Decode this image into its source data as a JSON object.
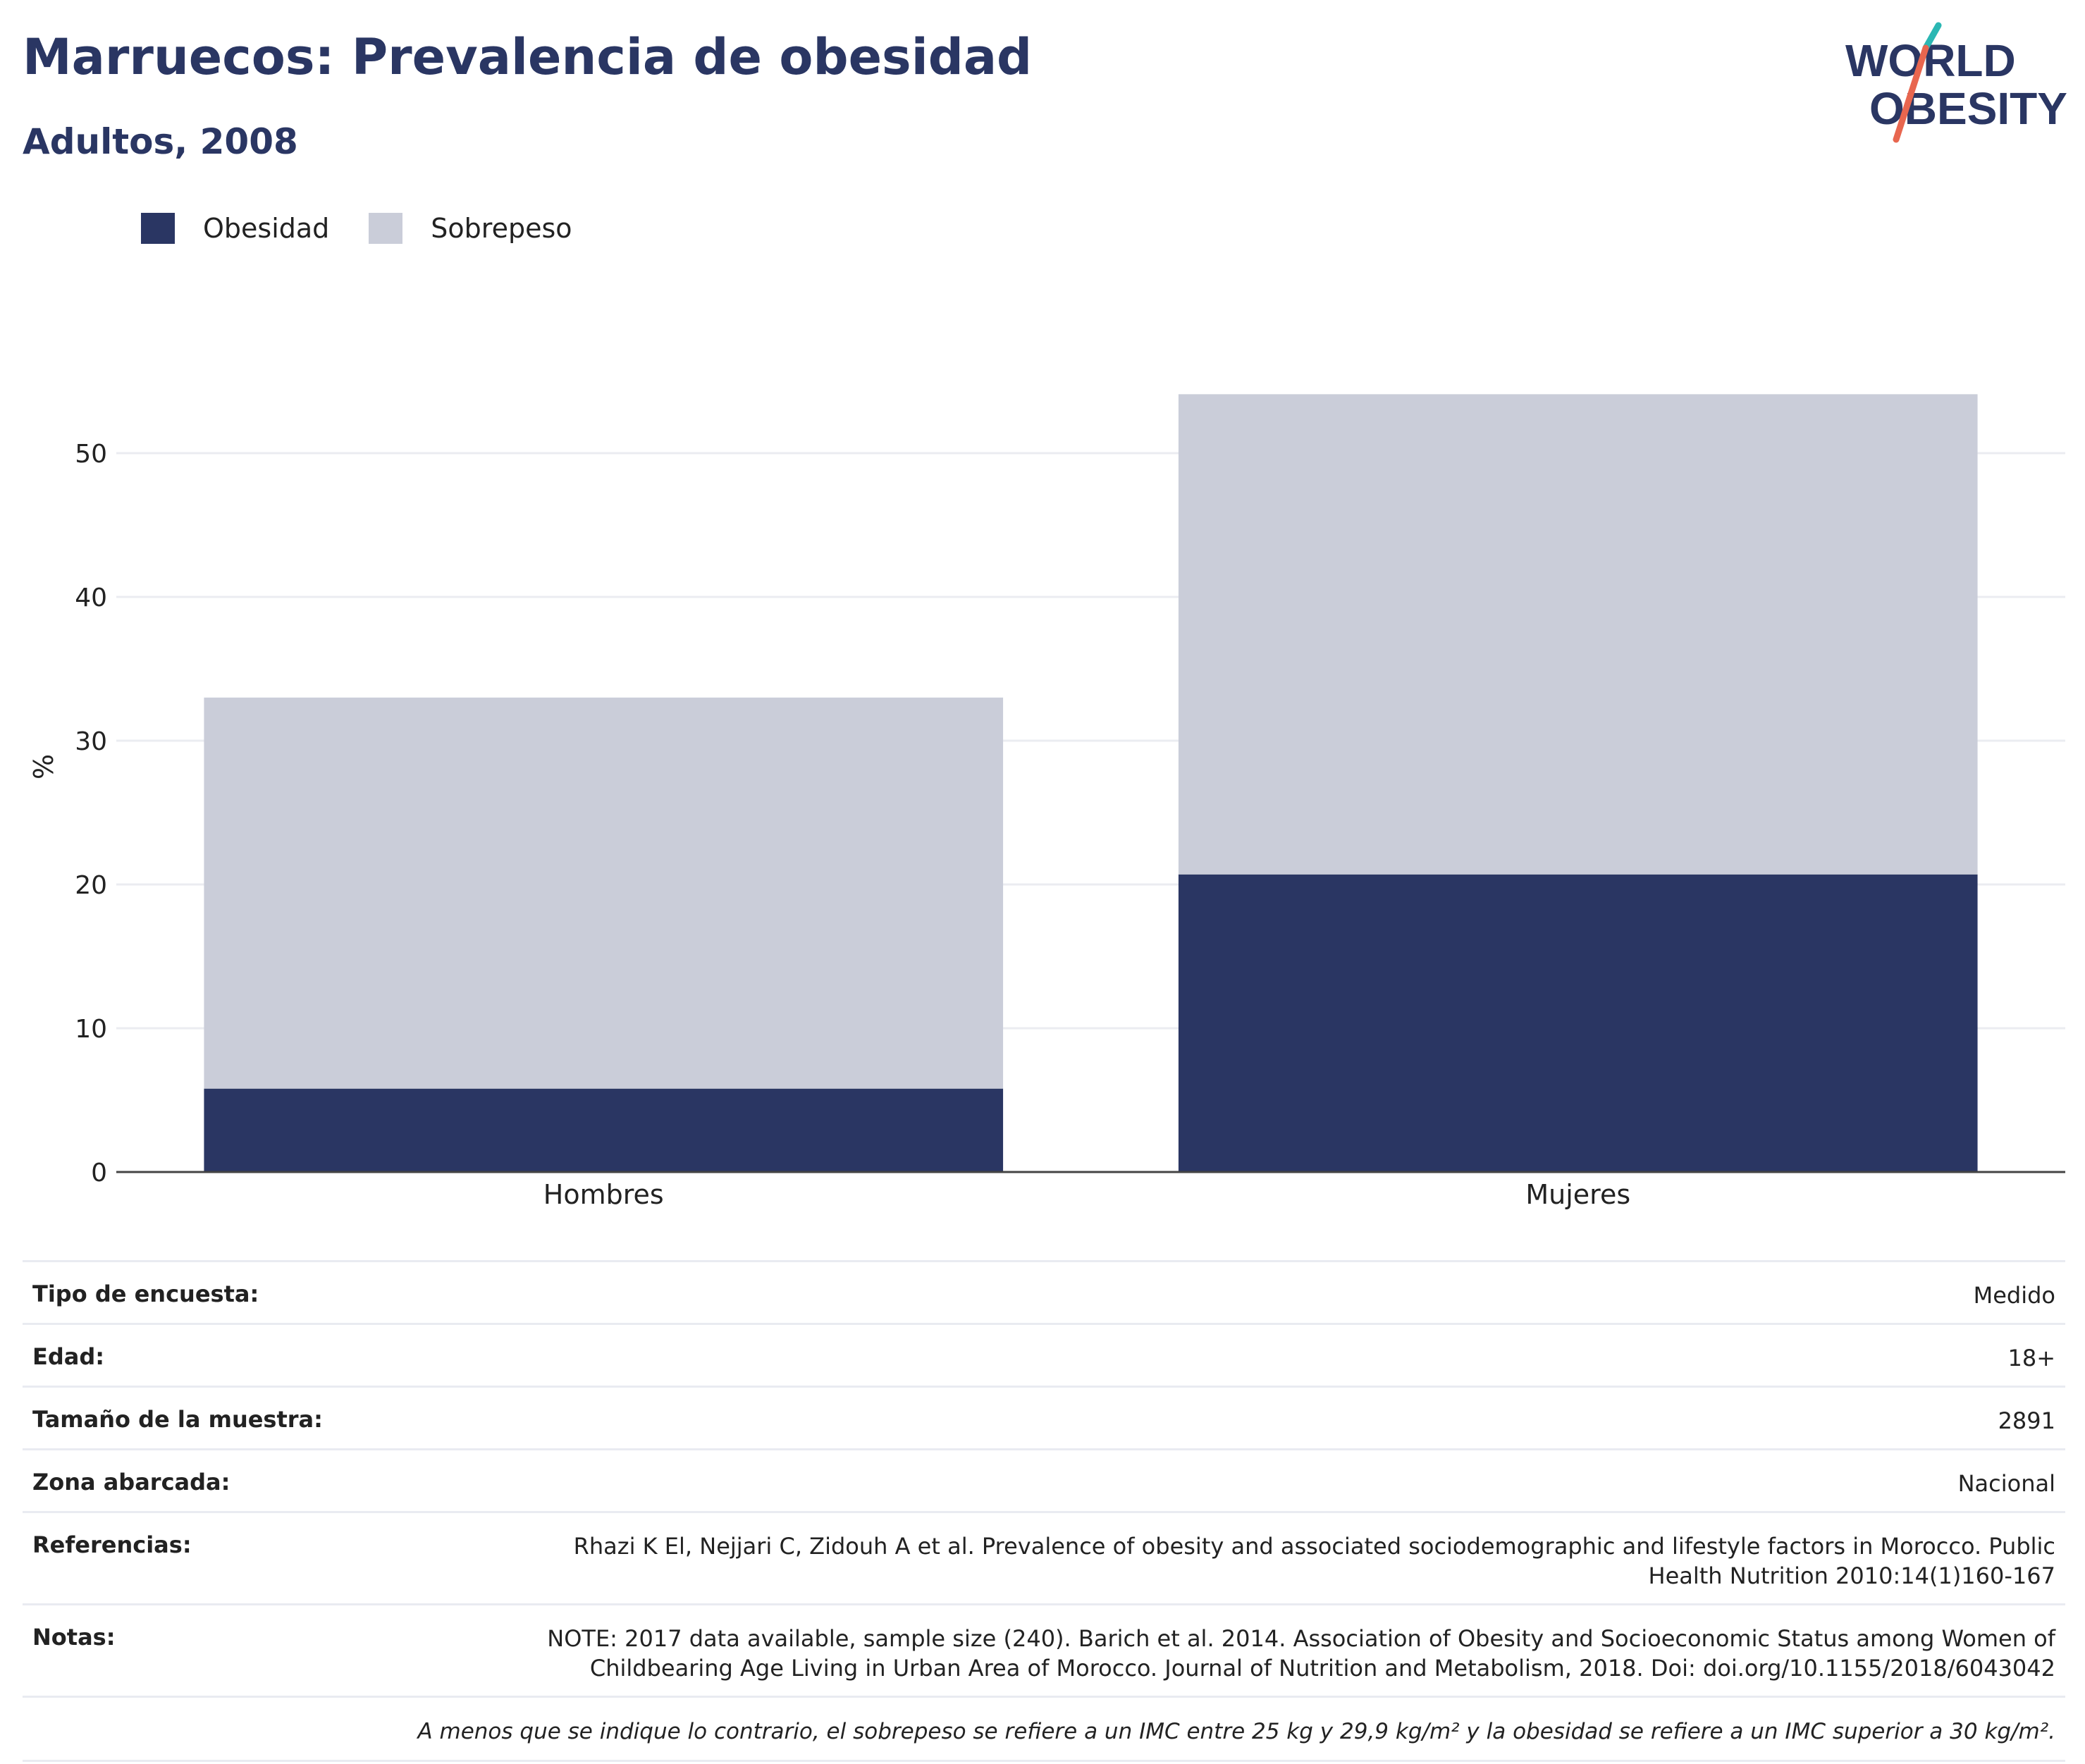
{
  "header": {
    "title": "Marruecos: Prevalencia de obesidad",
    "subtitle": "Adultos, 2008"
  },
  "logo": {
    "line1": "WORLD",
    "line2": "OBESITY",
    "text_color": "#2a3663",
    "accent_teal": "#2bb7b3",
    "accent_coral": "#e8664f"
  },
  "colors": {
    "obesity": "#2a3663",
    "overweight": "#cacdd9",
    "grid": "#ebecf1",
    "axis": "#444444"
  },
  "chart_data": {
    "type": "bar",
    "stacked": true,
    "categories": [
      "Hombres",
      "Mujeres"
    ],
    "series": [
      {
        "name": "Obesidad",
        "values": [
          5.8,
          20.7
        ],
        "color": "#2a3663"
      },
      {
        "name": "Sobrepeso",
        "values": [
          27.2,
          33.4
        ],
        "color": "#cacdd9"
      }
    ],
    "ylabel": "%",
    "ylim": [
      0,
      56
    ],
    "yticks": [
      0,
      10,
      20,
      30,
      40,
      50
    ],
    "grid": true,
    "legend": "top-left"
  },
  "info": {
    "rows": [
      {
        "key": "Tipo de encuesta:",
        "value": "Medido"
      },
      {
        "key": "Edad:",
        "value": "18+"
      },
      {
        "key": "Tamaño de la muestra:",
        "value": "2891"
      },
      {
        "key": "Zona abarcada:",
        "value": "Nacional"
      },
      {
        "key": "Referencias:",
        "value": "Rhazi K El, Nejjari C, Zidouh A et al. Prevalence of obesity and associated sociodemographic and lifestyle factors in Morocco. Public Health Nutrition 2010:14(1)160-167"
      },
      {
        "key": "Notas:",
        "value": "NOTE: 2017 data available, sample size (240). Barich et al. 2014. Association of Obesity and Socioeconomic Status among Women of Childbearing Age Living in Urban Area of Morocco. Journal of Nutrition and Metabolism, 2018. Doi: doi.org/10.1155/2018/6043042"
      }
    ],
    "note": "A menos que se indique lo contrario, el sobrepeso se refiere a un IMC entre 25 kg y 29,9 kg/m² y la obesidad se refiere a un IMC superior a 30 kg/m²."
  }
}
